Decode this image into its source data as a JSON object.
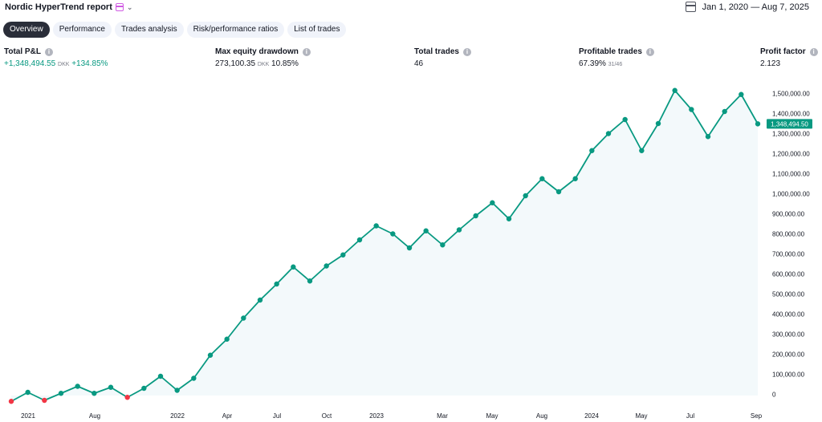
{
  "header": {
    "title": "Nordic HyperTrend report",
    "title_icon": "calendar-icon",
    "date_range": "Jan 1, 2020 — Aug 7, 2025"
  },
  "tabs": [
    {
      "label": "Overview",
      "active": true
    },
    {
      "label": "Performance",
      "active": false
    },
    {
      "label": "Trades analysis",
      "active": false
    },
    {
      "label": "Risk/performance ratios",
      "active": false
    },
    {
      "label": "List of trades",
      "active": false
    }
  ],
  "metrics": {
    "total_pnl": {
      "label": "Total P&L",
      "value": "+1,348,494.55",
      "unit": "DKK",
      "percent": "+134.85%"
    },
    "max_drawdown": {
      "label": "Max equity drawdown",
      "value": "273,100.35",
      "unit": "DKK",
      "percent": "10.85%"
    },
    "total_trades": {
      "label": "Total trades",
      "value": "46"
    },
    "profitable_trades": {
      "label": "Profitable trades",
      "value": "67.39%",
      "ratio": "31/46"
    },
    "profit_factor": {
      "label": "Profit factor",
      "value": "2.123"
    }
  },
  "colors": {
    "line": "#089981",
    "area": "#f3f9fb",
    "loss_point": "#f23645",
    "last_label_bg": "#089981"
  },
  "chart_data": {
    "type": "line",
    "ylim": [
      0,
      1600000
    ],
    "yticks": [
      "0",
      "100,000.00",
      "200,000.00",
      "300,000.00",
      "400,000.00",
      "500,000.00",
      "600,000.00",
      "700,000.00",
      "800,000.00",
      "900,000.00",
      "1,000,000.00",
      "1,100,000.00",
      "1,200,000.00",
      "1,300,000.00",
      "1,400,000.00",
      "1,500,000.00"
    ],
    "ytick_values": [
      0,
      100000,
      200000,
      300000,
      400000,
      500000,
      600000,
      700000,
      800000,
      900000,
      1000000,
      1100000,
      1200000,
      1300000,
      1400000,
      1500000
    ],
    "xticks": [
      "2021",
      "Aug",
      "2022",
      "Apr",
      "Jul",
      "Oct",
      "2023",
      "Mar",
      "May",
      "Aug",
      "2024",
      "May",
      "Jul",
      "Sep"
    ],
    "last_value_label": "1,348,494.50",
    "series": [
      {
        "values": [
          -35000,
          10000,
          -30000,
          5000,
          40000,
          5000,
          35000,
          -15000,
          30000,
          90000,
          20000,
          80000,
          195000,
          275000,
          380000,
          470000,
          550000,
          635000,
          565000,
          640000,
          695000,
          770000,
          840000,
          800000,
          730000,
          815000,
          745000,
          820000,
          890000,
          955000,
          875000,
          990000,
          1075000,
          1010000,
          1075000,
          1215000,
          1300000,
          1370000,
          1215000,
          1350000,
          1515000,
          1420000,
          1285000,
          1410000,
          1495000,
          1348494.5
        ],
        "loss_flags": [
          true,
          false,
          true,
          false,
          false,
          false,
          false,
          true,
          false,
          false,
          false,
          false,
          false,
          false,
          false,
          false,
          false,
          false,
          false,
          false,
          false,
          false,
          false,
          false,
          false,
          false,
          false,
          false,
          false,
          false,
          false,
          false,
          false,
          false,
          false,
          false,
          false,
          false,
          false,
          false,
          false,
          false,
          false,
          false,
          false,
          false
        ]
      }
    ]
  }
}
